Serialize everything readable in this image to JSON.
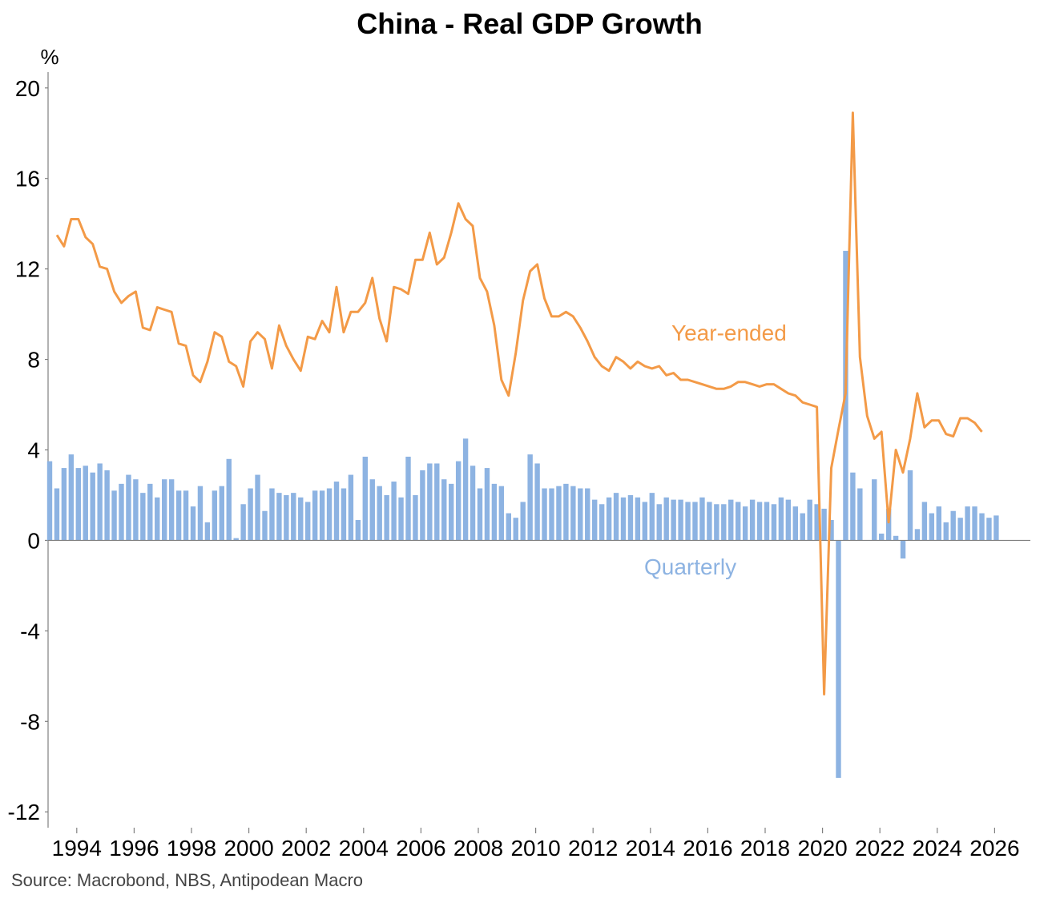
{
  "chart_data": {
    "type": "bar+line",
    "title": "China - Real GDP Growth",
    "ylabel": "%",
    "ylim": [
      -12.7,
      20.7
    ],
    "yticks": [
      -12,
      -8,
      -4,
      0,
      4,
      8,
      12,
      16,
      20
    ],
    "xticks": [
      "1994",
      "1996",
      "1998",
      "2000",
      "2002",
      "2004",
      "2006",
      "2008",
      "2010",
      "2012",
      "2014",
      "2016",
      "2018",
      "2020",
      "2022",
      "2024",
      "2026"
    ],
    "x_start": "1993Q1",
    "source": "Source: Macrobond, NBS, Antipodean Macro",
    "colors": {
      "quarterly": "#8db3e2",
      "year_ended": "#f39a47",
      "axis": "#808080"
    },
    "series": [
      {
        "name": "Quarterly",
        "type": "bar",
        "values": [
          3.5,
          2.3,
          3.2,
          3.8,
          3.2,
          3.3,
          3.0,
          3.4,
          3.1,
          2.2,
          2.5,
          2.9,
          2.7,
          2.1,
          2.5,
          1.9,
          2.7,
          2.7,
          2.2,
          2.2,
          1.5,
          2.4,
          0.8,
          2.2,
          2.4,
          3.6,
          0.1,
          1.6,
          2.3,
          2.9,
          1.3,
          2.3,
          2.1,
          2.0,
          2.1,
          1.9,
          1.7,
          2.2,
          2.2,
          2.3,
          2.6,
          2.3,
          2.9,
          0.9,
          3.7,
          2.7,
          2.4,
          2.0,
          2.6,
          1.9,
          3.7,
          2.0,
          3.1,
          3.4,
          3.4,
          2.7,
          2.5,
          3.5,
          4.5,
          3.3,
          2.3,
          3.2,
          2.5,
          2.4,
          1.2,
          1.0,
          1.7,
          3.8,
          3.4,
          2.3,
          2.3,
          2.4,
          2.5,
          2.4,
          2.3,
          2.3,
          1.8,
          1.6,
          1.9,
          2.1,
          1.9,
          2.0,
          1.9,
          1.7,
          2.1,
          1.6,
          1.9,
          1.8,
          1.8,
          1.7,
          1.7,
          1.9,
          1.7,
          1.6,
          1.6,
          1.8,
          1.7,
          1.5,
          1.8,
          1.7,
          1.7,
          1.6,
          1.9,
          1.8,
          1.5,
          1.2,
          1.8,
          1.6,
          1.4,
          0.9,
          -10.5,
          12.8,
          3.0,
          2.3,
          0.0,
          2.7,
          0.3,
          1.4,
          0.2,
          -0.8,
          3.1,
          0.5,
          1.7,
          1.2,
          1.5,
          0.8,
          1.3,
          1.0,
          1.5,
          1.5,
          1.2,
          1.0,
          1.1
        ]
      },
      {
        "name": "Year-ended",
        "type": "line",
        "start": "1993Q2",
        "values": [
          13.5,
          13.0,
          14.2,
          14.2,
          13.4,
          13.1,
          12.1,
          12.0,
          11.0,
          10.5,
          10.8,
          11.0,
          9.4,
          9.3,
          10.3,
          10.2,
          10.1,
          8.7,
          8.6,
          7.3,
          7.0,
          7.9,
          9.2,
          9.0,
          7.9,
          7.7,
          6.8,
          8.8,
          9.2,
          8.9,
          7.6,
          9.5,
          8.6,
          8.0,
          7.5,
          9.0,
          8.9,
          9.7,
          9.2,
          11.2,
          9.2,
          10.1,
          10.1,
          10.5,
          11.6,
          9.8,
          8.8,
          11.2,
          11.1,
          10.9,
          12.4,
          12.4,
          13.6,
          12.2,
          12.5,
          13.6,
          14.9,
          14.2,
          13.9,
          11.6,
          11.0,
          9.5,
          7.1,
          6.4,
          8.3,
          10.6,
          11.9,
          12.2,
          10.7,
          9.9,
          9.9,
          10.1,
          9.9,
          9.4,
          8.8,
          8.1,
          7.7,
          7.5,
          8.1,
          7.9,
          7.6,
          7.9,
          7.7,
          7.6,
          7.7,
          7.3,
          7.4,
          7.1,
          7.1,
          7.0,
          6.9,
          6.8,
          6.7,
          6.7,
          6.8,
          7.0,
          7.0,
          6.9,
          6.8,
          6.9,
          6.9,
          6.7,
          6.5,
          6.4,
          6.1,
          6.0,
          5.9,
          -6.8,
          3.2,
          4.9,
          6.5,
          18.9,
          8.1,
          5.5,
          4.5,
          4.8,
          0.8,
          4.0,
          3.0,
          4.5,
          6.5,
          5.0,
          5.3,
          5.3,
          4.7,
          4.6,
          5.4,
          5.4,
          5.2,
          4.8
        ]
      }
    ],
    "annotations": [
      {
        "text": "Year-ended",
        "series": "Year-ended"
      },
      {
        "text": "Quarterly",
        "series": "Quarterly"
      }
    ]
  }
}
